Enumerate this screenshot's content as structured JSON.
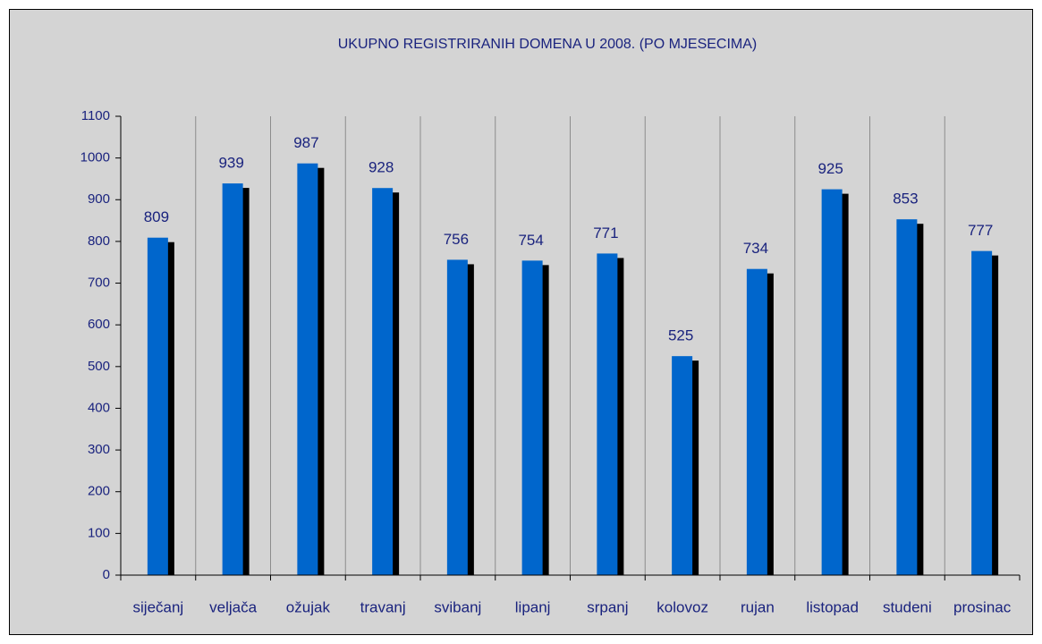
{
  "chart_data": {
    "type": "bar",
    "title": "UKUPNO REGISTRIRANIH DOMENA U 2008. (PO MJESECIMA)",
    "categories": [
      "siječanj",
      "veljača",
      "ožujak",
      "travanj",
      "svibanj",
      "lipanj",
      "srpanj",
      "kolovoz",
      "rujan",
      "listopad",
      "studeni",
      "prosinac"
    ],
    "values": [
      809,
      939,
      987,
      928,
      756,
      754,
      771,
      525,
      734,
      925,
      853,
      777
    ],
    "color": "#0066cc",
    "ylim": [
      0,
      1100
    ],
    "yticks": [
      0,
      100,
      200,
      300,
      400,
      500,
      600,
      700,
      800,
      900,
      1000,
      1100
    ],
    "grid": false
  }
}
